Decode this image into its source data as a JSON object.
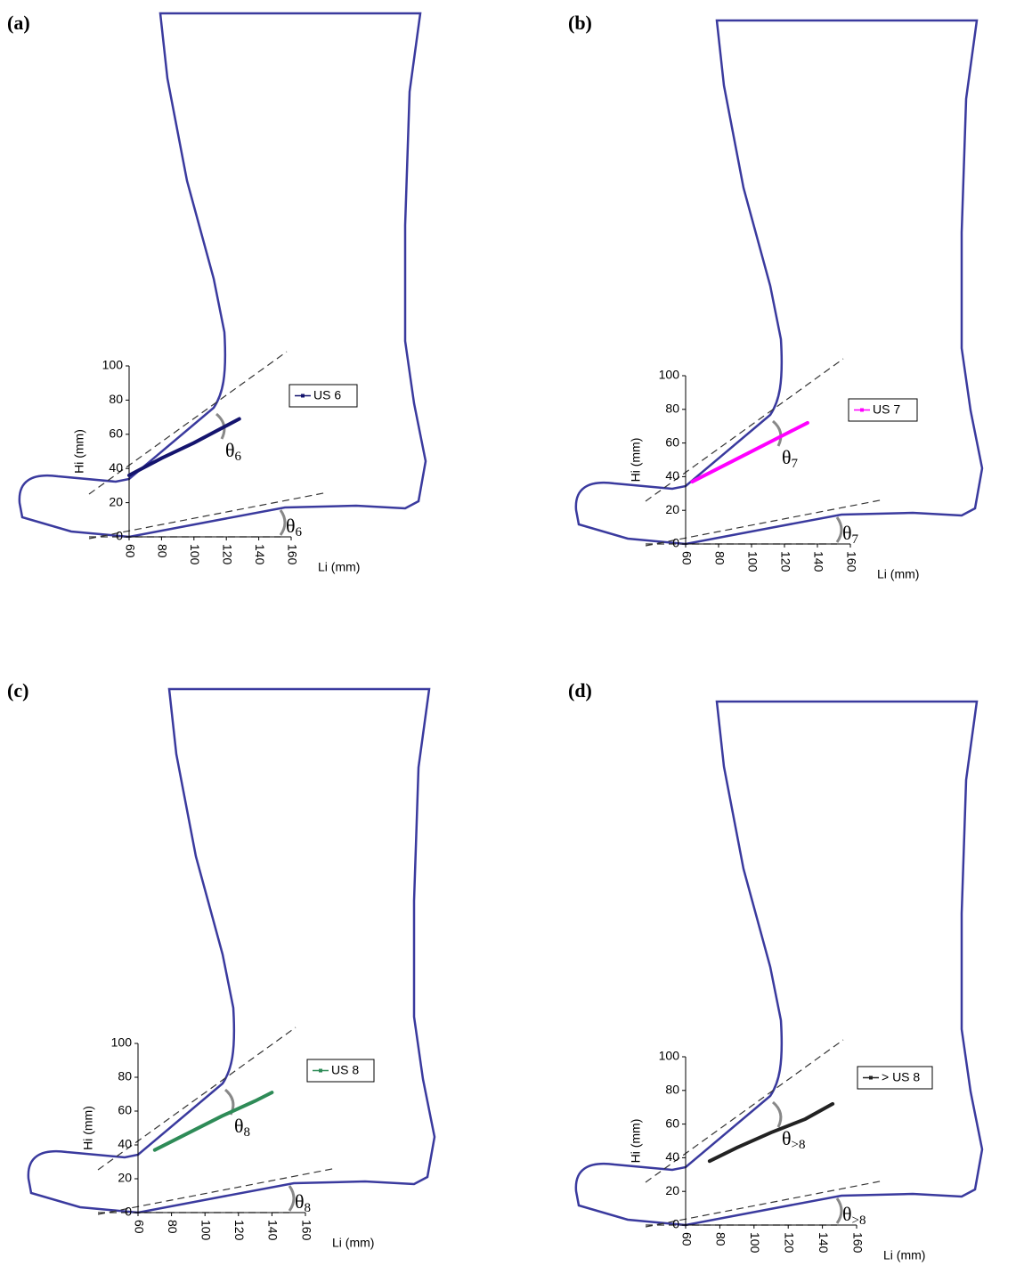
{
  "chart_data": [
    {
      "type": "line",
      "label": "(a)",
      "xlabel": "Li (mm)",
      "ylabel": "Hi (mm)",
      "xlim": [
        60,
        160
      ],
      "ylim": [
        0,
        100
      ],
      "xticks": [
        60,
        80,
        100,
        120,
        140,
        160
      ],
      "yticks": [
        0,
        20,
        40,
        60,
        80,
        100
      ],
      "angle_label": "θ",
      "angle_subscript": "6",
      "x": [
        60,
        80,
        100,
        120,
        128
      ],
      "series": [
        {
          "name": "US 6",
          "color": "#14146e",
          "values": [
            36,
            46,
            55,
            65,
            69
          ]
        }
      ]
    },
    {
      "type": "line",
      "label": "(b)",
      "xlabel": "Li (mm)",
      "ylabel": "Hi (mm)",
      "xlim": [
        60,
        160
      ],
      "ylim": [
        0,
        100
      ],
      "xticks": [
        60,
        80,
        100,
        120,
        140,
        160
      ],
      "yticks": [
        0,
        20,
        40,
        60,
        80,
        100
      ],
      "angle_label": "θ",
      "angle_subscript": "7",
      "x": [
        64,
        80,
        100,
        120,
        134
      ],
      "series": [
        {
          "name": "US 7",
          "color": "#ff00ff",
          "values": [
            37,
            45,
            55,
            65,
            72
          ]
        }
      ]
    },
    {
      "type": "line",
      "label": "(c)",
      "xlabel": "Li (mm)",
      "ylabel": "Hi (mm)",
      "xlim": [
        60,
        160
      ],
      "ylim": [
        0,
        100
      ],
      "xticks": [
        60,
        80,
        100,
        120,
        140,
        160
      ],
      "yticks": [
        0,
        20,
        40,
        60,
        80,
        100
      ],
      "angle_label": "θ",
      "angle_subscript": "8",
      "x": [
        70,
        90,
        110,
        130,
        140
      ],
      "series": [
        {
          "name": "US 8",
          "color": "#2e8b57",
          "values": [
            37,
            47,
            57,
            66,
            71
          ]
        }
      ]
    },
    {
      "type": "line",
      "label": "(d)",
      "xlabel": "Li (mm)",
      "ylabel": "Hi (mm)",
      "xlim": [
        60,
        160
      ],
      "ylim": [
        0,
        100
      ],
      "xticks": [
        60,
        80,
        100,
        120,
        140,
        160
      ],
      "yticks": [
        0,
        20,
        40,
        60,
        80,
        100
      ],
      "angle_label": "θ",
      "angle_subscript": ">8",
      "x": [
        74,
        90,
        110,
        130,
        146
      ],
      "series": [
        {
          "name": "> US 8",
          "color": "#222222",
          "values": [
            38,
            46,
            55,
            63,
            72
          ]
        }
      ]
    }
  ]
}
